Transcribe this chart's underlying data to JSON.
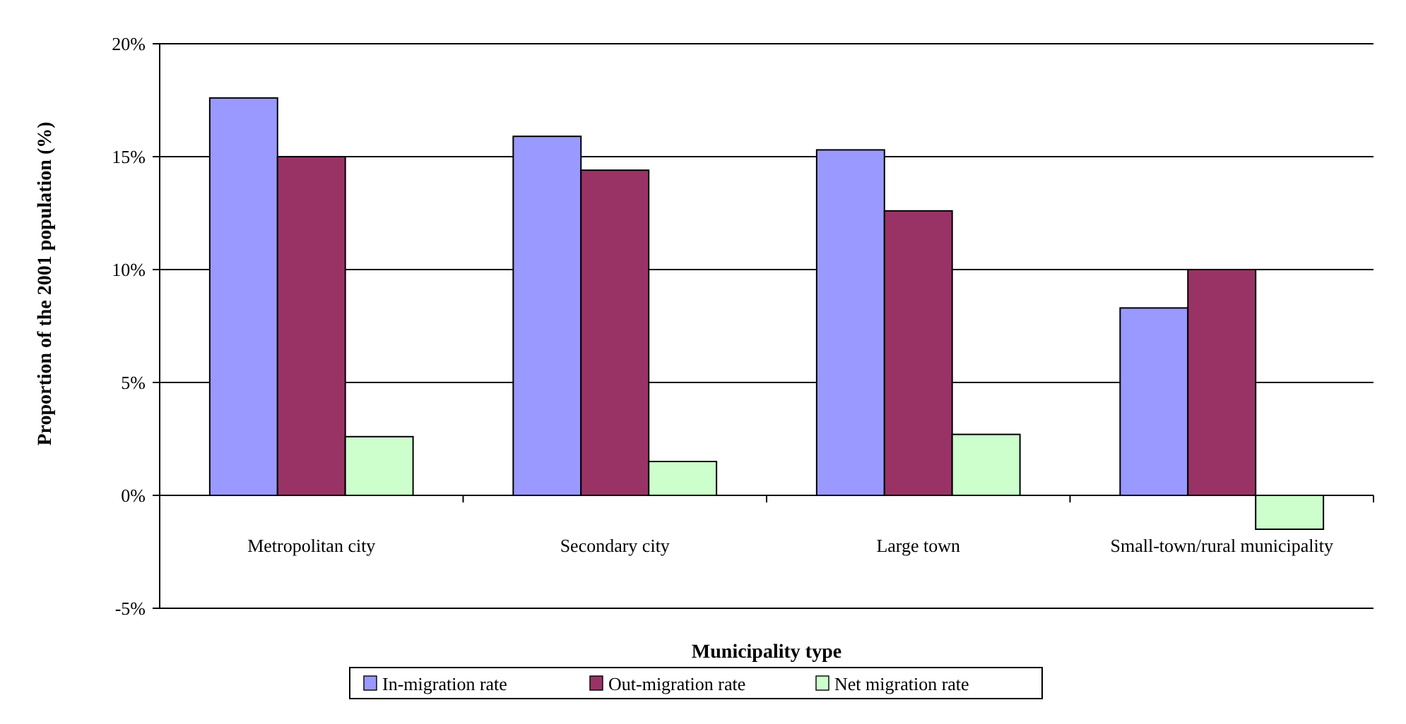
{
  "chart_data": {
    "type": "bar",
    "xlabel": "Municipality type",
    "ylabel": "Proportion of the 2001  population (%)",
    "categories": [
      "Metropolitan city",
      "Secondary city",
      "Large town",
      "Small-town/rural municipality"
    ],
    "series": [
      {
        "name": "In-migration rate",
        "color": "#9999ff",
        "values": [
          17.6,
          15.9,
          15.3,
          8.3
        ]
      },
      {
        "name": "Out-migration rate",
        "color": "#993366",
        "values": [
          15.0,
          14.4,
          12.6,
          10.0
        ]
      },
      {
        "name": "Net migration rate",
        "color": "#ccffcc",
        "values": [
          2.6,
          1.5,
          2.7,
          -1.5
        ]
      }
    ],
    "ylim": [
      -5,
      20
    ],
    "yticks": [
      {
        "value": -5,
        "label": "-5%"
      },
      {
        "value": 0,
        "label": "0%"
      },
      {
        "value": 5,
        "label": "5%"
      },
      {
        "value": 10,
        "label": "10%"
      },
      {
        "value": 15,
        "label": "15%"
      },
      {
        "value": 20,
        "label": "20%"
      }
    ],
    "grid": "y",
    "legend": "bottom"
  }
}
